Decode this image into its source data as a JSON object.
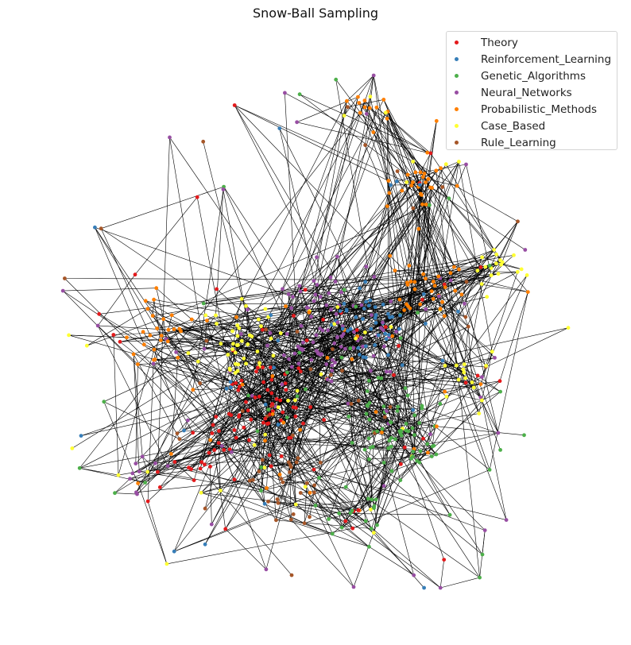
{
  "title": "Snow-Ball Sampling",
  "legend": [
    {
      "label": "Theory",
      "color": "#e41a1c"
    },
    {
      "label": "Reinforcement_Learning",
      "color": "#377eb8"
    },
    {
      "label": "Genetic_Algorithms",
      "color": "#4daf4a"
    },
    {
      "label": "Neural_Networks",
      "color": "#984ea3"
    },
    {
      "label": "Probabilistic_Methods",
      "color": "#ff7f00"
    },
    {
      "label": "Case_Based",
      "color": "#ffff33"
    },
    {
      "label": "Rule_Learning",
      "color": "#a65628"
    }
  ],
  "edge_color": "#000000"
}
